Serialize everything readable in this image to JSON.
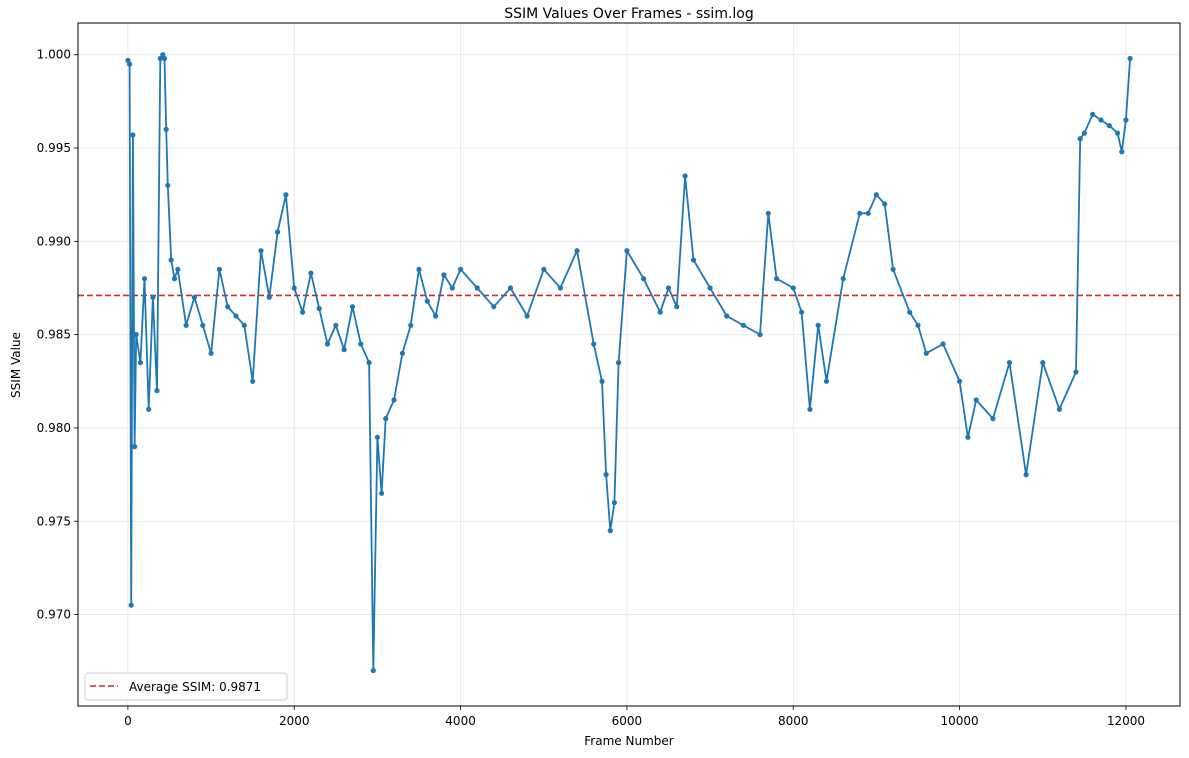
{
  "chart_data": {
    "type": "line",
    "title": "SSIM Values Over Frames - ssim.log",
    "xlabel": "Frame Number",
    "ylabel": "SSIM Value",
    "xlim": [
      -600,
      12650
    ],
    "ylim": [
      0.9651,
      1.0017
    ],
    "xticks": [
      0,
      2000,
      4000,
      6000,
      8000,
      10000,
      12000
    ],
    "xtick_labels": [
      "0",
      "2000",
      "4000",
      "6000",
      "8000",
      "10000",
      "12000"
    ],
    "yticks": [
      0.97,
      0.975,
      0.98,
      0.985,
      0.99,
      0.995,
      1.0
    ],
    "ytick_labels": [
      "0.970",
      "0.975",
      "0.980",
      "0.985",
      "0.990",
      "0.995",
      "1.000"
    ],
    "grid": true,
    "legend_position": "bottom-left",
    "series_color": "#1f77b4",
    "average_color": "#d62728",
    "average": {
      "label": "Average SSIM: 0.9871",
      "value": 0.9871
    },
    "series": [
      {
        "name": "SSIM",
        "x": [
          0,
          20,
          40,
          60,
          80,
          100,
          150,
          200,
          250,
          300,
          350,
          390,
          420,
          440,
          460,
          480,
          520,
          560,
          600,
          700,
          800,
          900,
          1000,
          1100,
          1200,
          1300,
          1400,
          1500,
          1600,
          1700,
          1800,
          1900,
          2000,
          2100,
          2200,
          2300,
          2400,
          2500,
          2600,
          2700,
          2800,
          2900,
          2950,
          3000,
          3050,
          3100,
          3200,
          3300,
          3400,
          3500,
          3600,
          3700,
          3800,
          3900,
          4000,
          4200,
          4400,
          4600,
          4800,
          5000,
          5200,
          5400,
          5600,
          5700,
          5750,
          5800,
          5850,
          5900,
          6000,
          6200,
          6400,
          6500,
          6600,
          6700,
          6800,
          7000,
          7200,
          7400,
          7600,
          7700,
          7800,
          8000,
          8100,
          8200,
          8300,
          8400,
          8600,
          8800,
          8900,
          9000,
          9100,
          9200,
          9400,
          9500,
          9600,
          9800,
          10000,
          10100,
          10200,
          10400,
          10600,
          10800,
          11000,
          11200,
          11400,
          11450,
          11500,
          11600,
          11700,
          11800,
          11900,
          11950,
          12000,
          12050
        ],
        "values": [
          0.9997,
          0.9995,
          0.9705,
          0.9957,
          0.979,
          0.985,
          0.9835,
          0.988,
          0.981,
          0.987,
          0.982,
          0.9998,
          1.0,
          0.9998,
          0.996,
          0.993,
          0.989,
          0.988,
          0.9885,
          0.9855,
          0.987,
          0.9855,
          0.984,
          0.9885,
          0.9865,
          0.986,
          0.9855,
          0.9825,
          0.9895,
          0.987,
          0.9905,
          0.9925,
          0.9875,
          0.9862,
          0.9883,
          0.9864,
          0.9845,
          0.9855,
          0.9842,
          0.9865,
          0.9845,
          0.9835,
          0.967,
          0.9795,
          0.9765,
          0.9805,
          0.9815,
          0.984,
          0.9855,
          0.9885,
          0.9868,
          0.986,
          0.9882,
          0.9875,
          0.9885,
          0.9875,
          0.9865,
          0.9875,
          0.986,
          0.9885,
          0.9875,
          0.9895,
          0.9845,
          0.9825,
          0.9775,
          0.9745,
          0.976,
          0.9835,
          0.9895,
          0.988,
          0.9862,
          0.9875,
          0.9865,
          0.9935,
          0.989,
          0.9875,
          0.986,
          0.9855,
          0.985,
          0.9915,
          0.988,
          0.9875,
          0.9862,
          0.981,
          0.9855,
          0.9825,
          0.988,
          0.9915,
          0.9915,
          0.9925,
          0.992,
          0.9885,
          0.9862,
          0.9855,
          0.984,
          0.9845,
          0.9825,
          0.9795,
          0.9815,
          0.9805,
          0.9835,
          0.9775,
          0.9835,
          0.981,
          0.983,
          0.9955,
          0.9958,
          0.9968,
          0.9965,
          0.9962,
          0.9958,
          0.9948,
          0.9965,
          0.9998
        ]
      }
    ]
  }
}
